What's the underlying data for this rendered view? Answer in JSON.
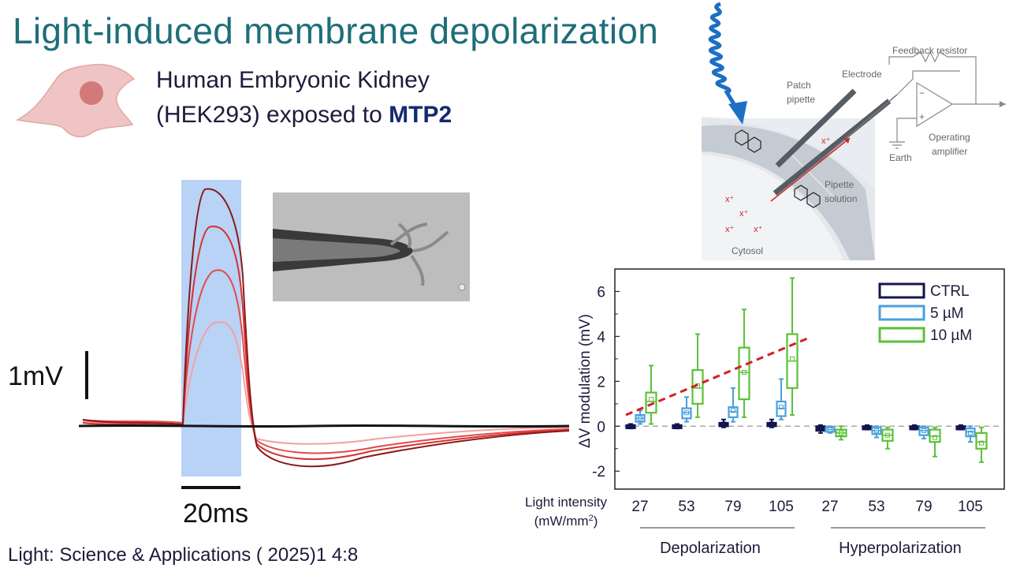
{
  "slide": {
    "title": "Light-induced membrane depolarization",
    "cell_line_1": "Human Embryonic Kidney",
    "cell_line_2_prefix": "(HEK293) exposed to ",
    "compound": "MTP2",
    "citation": "Light: Science & Applications ( 2025)1 4:8"
  },
  "trace": {
    "scale_voltage": "1mV",
    "scale_time": "20ms"
  },
  "schematic": {
    "feedback_resistor": "Feedback resistor",
    "electrode": "Electrode",
    "patch_pipette_1": "Patch",
    "patch_pipette_2": "pipette",
    "operating_amplifier_1": "Operating",
    "operating_amplifier_2": "amplifier",
    "earth": "Earth",
    "pipette_solution_1": "Pipette",
    "pipette_solution_2": "solution",
    "cytosol": "Cytosol",
    "ion": "x⁺",
    "minus": "−",
    "plus": "+"
  },
  "colors": {
    "ctrl": "#141450",
    "c5": "#4aa0dc",
    "c10": "#5cc03a",
    "trend": "#d42020",
    "light_pulse": "#b8d3f6"
  },
  "chart_data": {
    "type": "box",
    "ylabel": "ΔV modulation (mV)",
    "ylim": [
      -2.8,
      7
    ],
    "yticks": [
      -2,
      0,
      2,
      4,
      6
    ],
    "xlabel_1": "Light intensity",
    "xlabel_2": "(mW/mm",
    "xlabel_sup": "2",
    "xlabel_3": ")",
    "categories": [
      "27",
      "53",
      "79",
      "105",
      "27",
      "53",
      "79",
      "105"
    ],
    "groups": [
      "Depolarization",
      "Hyperpolarization"
    ],
    "legend_position": "top-right",
    "series": [
      {
        "name": "CTRL",
        "boxes": [
          {
            "min": -0.1,
            "q1": -0.05,
            "median": 0,
            "q3": 0.05,
            "max": 0.1,
            "mean": 0
          },
          {
            "min": -0.1,
            "q1": -0.05,
            "median": 0,
            "q3": 0.05,
            "max": 0.1,
            "mean": 0
          },
          {
            "min": -0.05,
            "q1": 0,
            "median": 0.1,
            "q3": 0.15,
            "max": 0.3,
            "mean": 0.1
          },
          {
            "min": -0.05,
            "q1": 0,
            "median": 0.1,
            "q3": 0.15,
            "max": 0.3,
            "mean": 0.1
          },
          {
            "min": -0.3,
            "q1": -0.2,
            "median": -0.1,
            "q3": 0,
            "max": 0.05,
            "mean": -0.1
          },
          {
            "min": -0.15,
            "q1": -0.1,
            "median": -0.05,
            "q3": 0,
            "max": 0.05,
            "mean": -0.05
          },
          {
            "min": -0.15,
            "q1": -0.1,
            "median": -0.05,
            "q3": 0,
            "max": 0.05,
            "mean": -0.05
          },
          {
            "min": -0.15,
            "q1": -0.1,
            "median": -0.05,
            "q3": 0,
            "max": 0.05,
            "mean": -0.05
          }
        ]
      },
      {
        "name": "5 µM",
        "boxes": [
          {
            "min": 0.1,
            "q1": 0.2,
            "median": 0.35,
            "q3": 0.5,
            "max": 0.7,
            "mean": 0.35
          },
          {
            "min": 0.2,
            "q1": 0.35,
            "median": 0.6,
            "q3": 0.8,
            "max": 1.3,
            "mean": 0.6
          },
          {
            "min": 0.2,
            "q1": 0.4,
            "median": 0.65,
            "q3": 0.85,
            "max": 1.7,
            "mean": 0.7
          },
          {
            "min": 0.3,
            "q1": 0.45,
            "median": 0.8,
            "q3": 1.1,
            "max": 2.1,
            "mean": 0.85
          },
          {
            "min": -0.3,
            "q1": -0.25,
            "median": -0.15,
            "q3": -0.05,
            "max": 0,
            "mean": -0.15
          },
          {
            "min": -0.5,
            "q1": -0.35,
            "median": -0.2,
            "q3": -0.05,
            "max": 0,
            "mean": -0.2
          },
          {
            "min": -0.55,
            "q1": -0.4,
            "median": -0.2,
            "q3": -0.05,
            "max": 0,
            "mean": -0.2
          },
          {
            "min": -0.7,
            "q1": -0.45,
            "median": -0.25,
            "q3": -0.1,
            "max": 0,
            "mean": -0.3
          }
        ]
      },
      {
        "name": "10 µM",
        "boxes": [
          {
            "min": 0.1,
            "q1": 0.6,
            "median": 1.1,
            "q3": 1.5,
            "max": 2.7,
            "mean": 1.2
          },
          {
            "min": 0.4,
            "q1": 1.0,
            "median": 1.7,
            "q3": 2.5,
            "max": 4.1,
            "mean": 1.8
          },
          {
            "min": 0.4,
            "q1": 1.2,
            "median": 2.4,
            "q3": 3.5,
            "max": 5.2,
            "mean": 2.4
          },
          {
            "min": 0.5,
            "q1": 1.7,
            "median": 2.9,
            "q3": 4.1,
            "max": 6.6,
            "mean": 3.0
          },
          {
            "min": -0.6,
            "q1": -0.45,
            "median": -0.3,
            "q3": -0.15,
            "max": 0,
            "mean": -0.3
          },
          {
            "min": -1.0,
            "q1": -0.65,
            "median": -0.4,
            "q3": -0.15,
            "max": -0.05,
            "mean": -0.4
          },
          {
            "min": -1.35,
            "q1": -0.7,
            "median": -0.45,
            "q3": -0.15,
            "max": -0.05,
            "mean": -0.5
          },
          {
            "min": -1.6,
            "q1": -1.0,
            "median": -0.7,
            "q3": -0.3,
            "max": -0.05,
            "mean": -0.75
          }
        ]
      }
    ],
    "trendline": {
      "start": [
        27,
        0.5
      ],
      "end": [
        105,
        3.95
      ]
    }
  }
}
